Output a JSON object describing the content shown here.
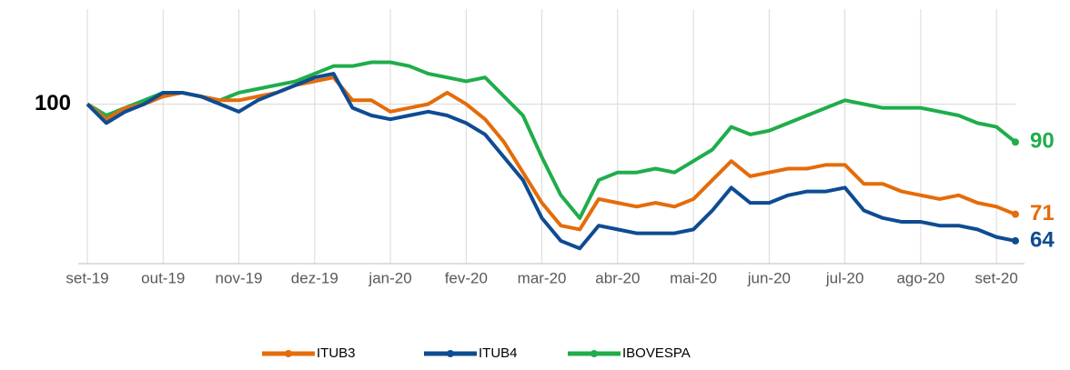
{
  "chart_data": {
    "type": "line",
    "categories": [
      "set-19",
      null,
      null,
      null,
      "out-19",
      null,
      null,
      null,
      "nov-19",
      null,
      null,
      null,
      "dez-19",
      null,
      null,
      null,
      "jan-20",
      null,
      null,
      null,
      "fev-20",
      null,
      null,
      null,
      "mar-20",
      null,
      null,
      null,
      "abr-20",
      null,
      null,
      null,
      "mai-20",
      null,
      null,
      null,
      "jun-20",
      null,
      null,
      null,
      "jul-20",
      null,
      null,
      null,
      "ago-20",
      null,
      null,
      null,
      "set-20",
      null
    ],
    "series": [
      {
        "name": "ITUB3",
        "color": "#e46c0a",
        "values": [
          100,
          96,
          99,
          100,
          102,
          103,
          102,
          101,
          101,
          102,
          103,
          105,
          106,
          107,
          101,
          101,
          98,
          99,
          100,
          103,
          100,
          96,
          90,
          82,
          74,
          68,
          67,
          75,
          74,
          73,
          74,
          73,
          75,
          80,
          85,
          81,
          82,
          83,
          83,
          84,
          84,
          79,
          79,
          77,
          76,
          75,
          76,
          74,
          73,
          71
        ]
      },
      {
        "name": "ITUB4",
        "color": "#0e4c92",
        "values": [
          100,
          95,
          98,
          100,
          103,
          103,
          102,
          100,
          98,
          101,
          103,
          105,
          107,
          108,
          99,
          97,
          96,
          97,
          98,
          97,
          95,
          92,
          86,
          80,
          70,
          64,
          62,
          68,
          67,
          66,
          66,
          66,
          67,
          72,
          78,
          74,
          74,
          76,
          77,
          77,
          78,
          72,
          70,
          69,
          69,
          68,
          68,
          67,
          65,
          64
        ]
      },
      {
        "name": "IBOVESPA",
        "color": "#1fad4b",
        "values": [
          100,
          97,
          99,
          101,
          103,
          103,
          102,
          101,
          103,
          104,
          105,
          106,
          108,
          110,
          110,
          111,
          111,
          110,
          108,
          107,
          106,
          107,
          102,
          97,
          86,
          76,
          70,
          80,
          82,
          82,
          83,
          82,
          85,
          88,
          94,
          92,
          93,
          95,
          97,
          99,
          101,
          100,
          99,
          99,
          99,
          98,
          97,
          95,
          94,
          90
        ]
      }
    ],
    "ylim": [
      58,
      125
    ],
    "yticks": [
      100
    ],
    "grid": true,
    "legend": "bottom"
  }
}
